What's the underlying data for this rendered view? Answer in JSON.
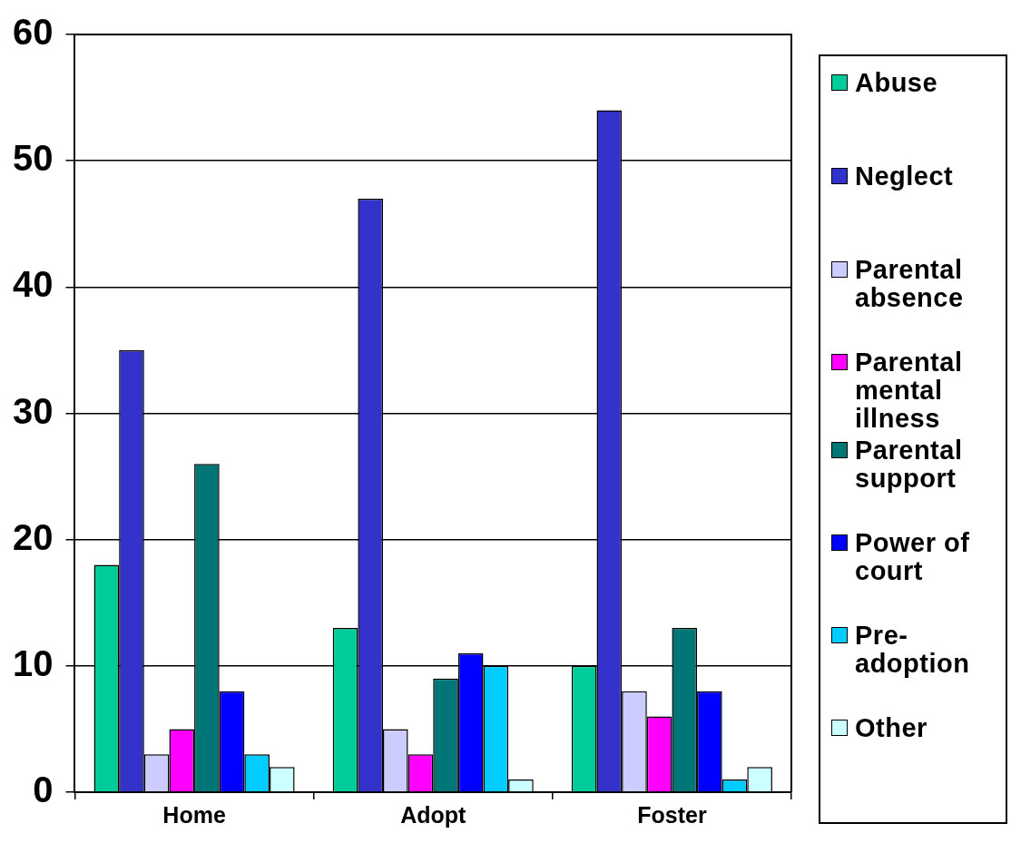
{
  "chart_data": {
    "type": "bar",
    "categories": [
      "Home",
      "Adopt",
      "Foster"
    ],
    "series": [
      {
        "name": "Abuse",
        "color": "#00cc99",
        "values": [
          18,
          13,
          10
        ]
      },
      {
        "name": "Neglect",
        "color": "#3333cc",
        "values": [
          35,
          47,
          54
        ]
      },
      {
        "name": "Parental absence",
        "color": "#ccccff",
        "values": [
          3,
          5,
          8
        ]
      },
      {
        "name": "Parental mental illness",
        "color": "#ff00ff",
        "values": [
          5,
          3,
          6
        ]
      },
      {
        "name": "Parental support",
        "color": "#007777",
        "values": [
          26,
          9,
          13
        ]
      },
      {
        "name": "Power of court",
        "color": "#0000ff",
        "values": [
          8,
          11,
          8
        ]
      },
      {
        "name": "Pre-adoption",
        "color": "#00ccff",
        "values": [
          3,
          10,
          1
        ]
      },
      {
        "name": "Other",
        "color": "#ccffff",
        "values": [
          2,
          1,
          2
        ]
      }
    ],
    "ylim": [
      0,
      60
    ],
    "yticks": [
      0,
      10,
      20,
      30,
      40,
      50,
      60
    ],
    "grid": "y",
    "legend": "right"
  }
}
